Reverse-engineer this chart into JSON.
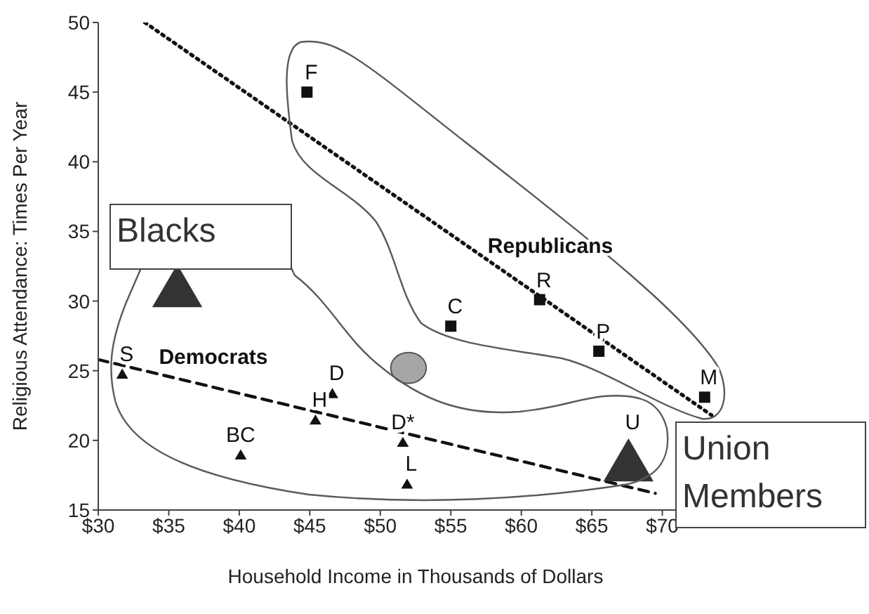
{
  "chart_data": {
    "type": "scatter",
    "xlabel": "Household Income in Thousands of Dollars",
    "ylabel": "Religious Attendance:  Times Per Year",
    "xlim": [
      30,
      75
    ],
    "xticks": [
      {
        "value": 30,
        "label": "$30"
      },
      {
        "value": 35,
        "label": "$35"
      },
      {
        "value": 40,
        "label": "$40"
      },
      {
        "value": 45,
        "label": "$45"
      },
      {
        "value": 50,
        "label": "$50"
      },
      {
        "value": 55,
        "label": "$55"
      },
      {
        "value": 60,
        "label": "$60"
      },
      {
        "value": 65,
        "label": "$65"
      },
      {
        "value": 70,
        "label": "$70"
      }
    ],
    "ylim": [
      15,
      50
    ],
    "yticks": [
      15,
      20,
      25,
      30,
      35,
      40,
      45,
      50
    ],
    "grid": false,
    "legend": false,
    "series": [
      {
        "name": "Republicans",
        "type": "scatter",
        "marker": "square",
        "color": "#111111",
        "x": [
          44.8,
          55,
          61.3,
          65.5,
          73
        ],
        "values": [
          45,
          28.2,
          30.1,
          26.4,
          23.1
        ]
      },
      {
        "name": "Democrats",
        "type": "scatter",
        "marker": "triangle",
        "color": "#111111",
        "x": [
          31.7,
          40.1,
          45.4,
          46.6,
          51.6,
          51.9
        ],
        "values": [
          24.8,
          19,
          21.5,
          23.4,
          19.9,
          16.9
        ]
      },
      {
        "name": "Blacks",
        "type": "scatter",
        "marker": "triangle",
        "color": "#333333",
        "x": [
          35.6
        ],
        "values": [
          31.1
        ]
      },
      {
        "name": "Union Members",
        "type": "scatter",
        "marker": "triangle",
        "color": "#333333",
        "x": [
          67.6
        ],
        "values": [
          18.6
        ]
      },
      {
        "type": "scatter",
        "marker": "circle",
        "color": "#a6a6a6",
        "x": [
          52
        ],
        "values": [
          25.2
        ]
      },
      {
        "type": "line",
        "line_style": "dotted",
        "marker": "none",
        "color": "#111111",
        "x": [
          33.3,
          73.5
        ],
        "values": [
          50,
          21.8
        ]
      },
      {
        "type": "line",
        "line_style": "dashed",
        "marker": "none",
        "color": "#111111",
        "x": [
          30,
          69.5
        ],
        "values": [
          25.8,
          16.2
        ]
      }
    ],
    "annotations": [
      {
        "text": "F",
        "x": 44.8,
        "y": 45
      },
      {
        "text": "C",
        "x": 55,
        "y": 28.2
      },
      {
        "text": "R",
        "x": 61.3,
        "y": 30.1
      },
      {
        "text": "P",
        "x": 65.5,
        "y": 26.4
      },
      {
        "text": "M",
        "x": 73,
        "y": 23.1
      },
      {
        "text": "S",
        "x": 31.7,
        "y": 24.8
      },
      {
        "text": "BC",
        "x": 40.1,
        "y": 19
      },
      {
        "text": "H",
        "x": 45.4,
        "y": 21.5
      },
      {
        "text": "D",
        "x": 46.6,
        "y": 23.4
      },
      {
        "text": "D*",
        "x": 51.6,
        "y": 19.9
      },
      {
        "text": "L",
        "x": 51.9,
        "y": 16.9
      },
      {
        "text": "U",
        "x": 67.6,
        "y": 18.6
      }
    ]
  }
}
